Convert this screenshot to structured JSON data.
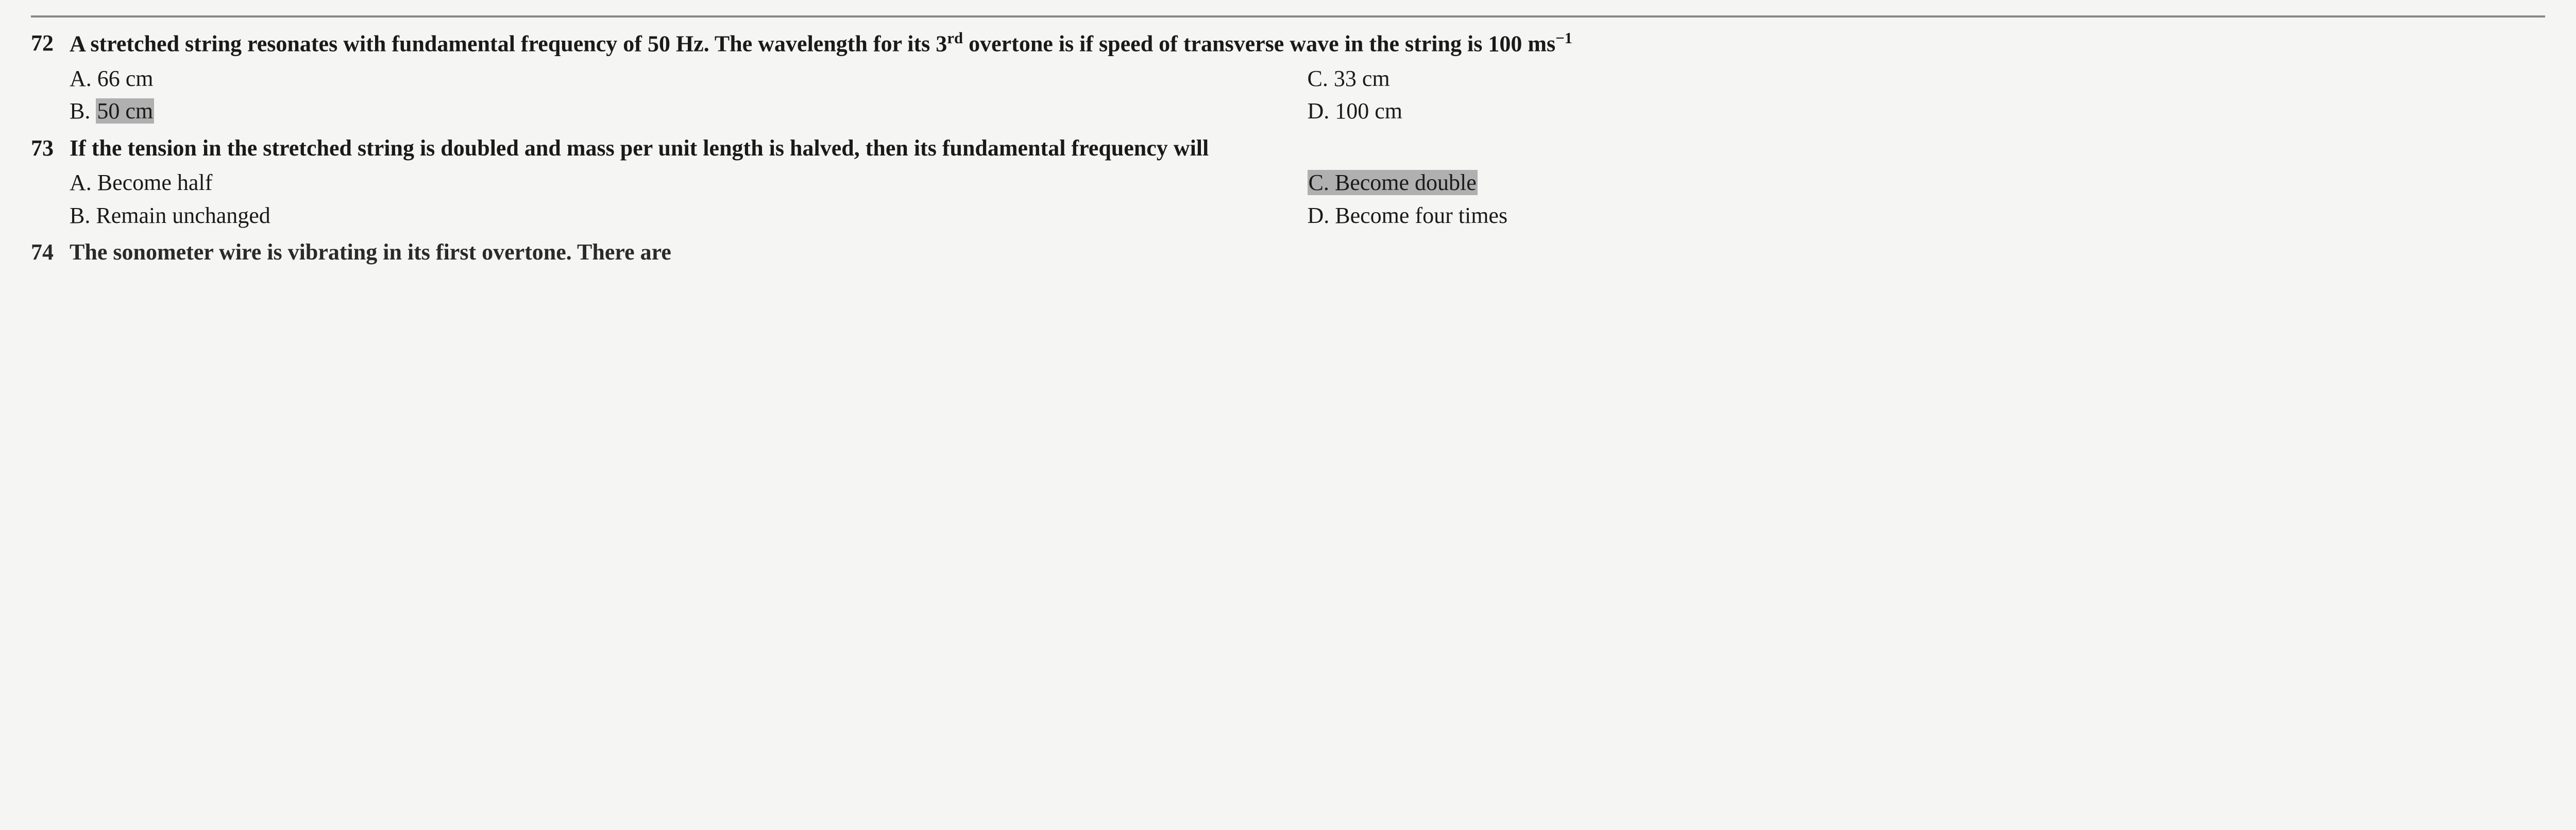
{
  "q172": {
    "number": "72",
    "text_part1": "A stretched string resonates with fundamental frequency of 50 Hz. The wavelength for its 3",
    "text_sup": "rd",
    "text_part2": " overtone is if speed of transverse wave in the string is 100 ms",
    "text_sup2": "−1",
    "options": {
      "a": "A. 66 cm",
      "b": "B. ",
      "b_hl": "50 cm",
      "c": "C. 33 cm",
      "d": "D. 100 cm"
    }
  },
  "q173": {
    "number": "73",
    "text": "If the tension in the stretched string is doubled and mass per unit length is halved, then its fundamental frequency will",
    "options": {
      "a": "A. Become half",
      "b": "B. Remain unchanged",
      "c_hl": "C. Become double",
      "d": "D. Become four times"
    }
  },
  "cutoff": {
    "num": "74",
    "text": "The sonometer wire is vibrating in its first overtone. There are"
  }
}
